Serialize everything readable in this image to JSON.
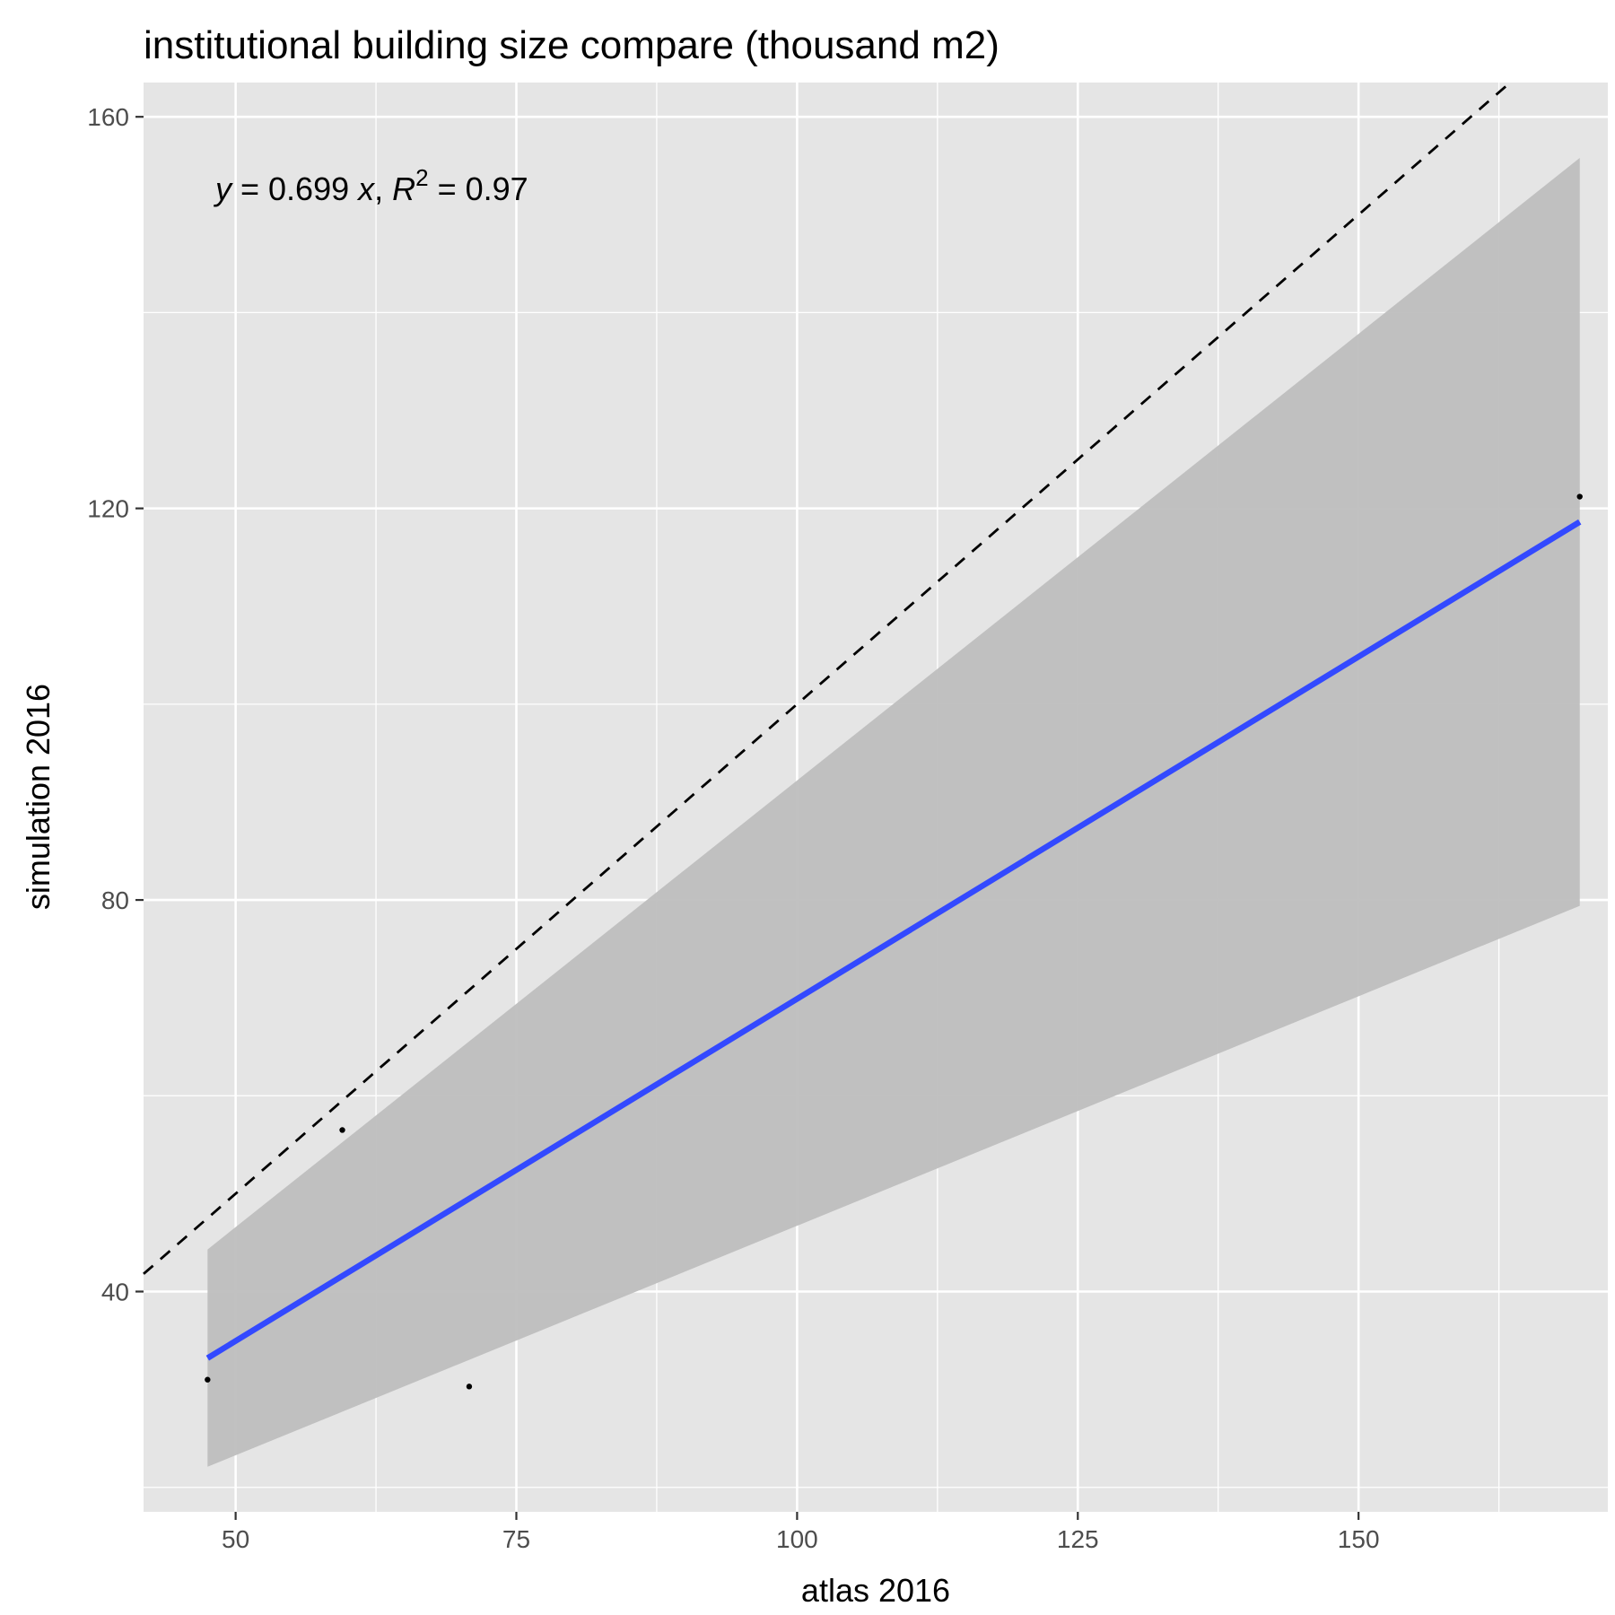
{
  "chart_data": {
    "type": "scatter",
    "title": "institutional building size compare (thousand m2)",
    "xlabel": "atlas 2016",
    "ylabel": "simulation 2016",
    "xlim": [
      41.8,
      172.2
    ],
    "ylim": [
      17.5,
      163.5
    ],
    "x_ticks": [
      50,
      75,
      100,
      125,
      150
    ],
    "x_minor_ticks": [
      62.5,
      87.5,
      112.5,
      137.5,
      162.5
    ],
    "y_ticks": [
      40,
      80,
      120,
      160
    ],
    "y_minor_ticks": [
      20,
      60,
      100,
      140
    ],
    "grid": true,
    "points": [
      {
        "x": 47.5,
        "y": 31.0
      },
      {
        "x": 59.5,
        "y": 56.5
      },
      {
        "x": 70.8,
        "y": 30.3
      },
      {
        "x": 169.7,
        "y": 121.2
      }
    ],
    "fit_line": {
      "slope": 0.699,
      "x_range": [
        47.5,
        169.7
      ],
      "color": "#3349ff"
    },
    "confidence_band": {
      "x": [
        47.5,
        169.7
      ],
      "lower": [
        22.1,
        79.4
      ],
      "upper": [
        44.3,
        155.8
      ],
      "color": "#bebebe"
    },
    "reference_line": {
      "slope": 1,
      "style": "dashed",
      "color": "#000000"
    },
    "annotation": {
      "y_var": "y",
      "eq_middle": " = 0.699 ",
      "x_var": "x",
      "comma": ", ",
      "r_var": "R",
      "r_exp": "2",
      "r_value": " = 0.97"
    },
    "colors": {
      "panel": "#e5e5e5",
      "grid": "#ffffff",
      "points": "#000000"
    }
  }
}
